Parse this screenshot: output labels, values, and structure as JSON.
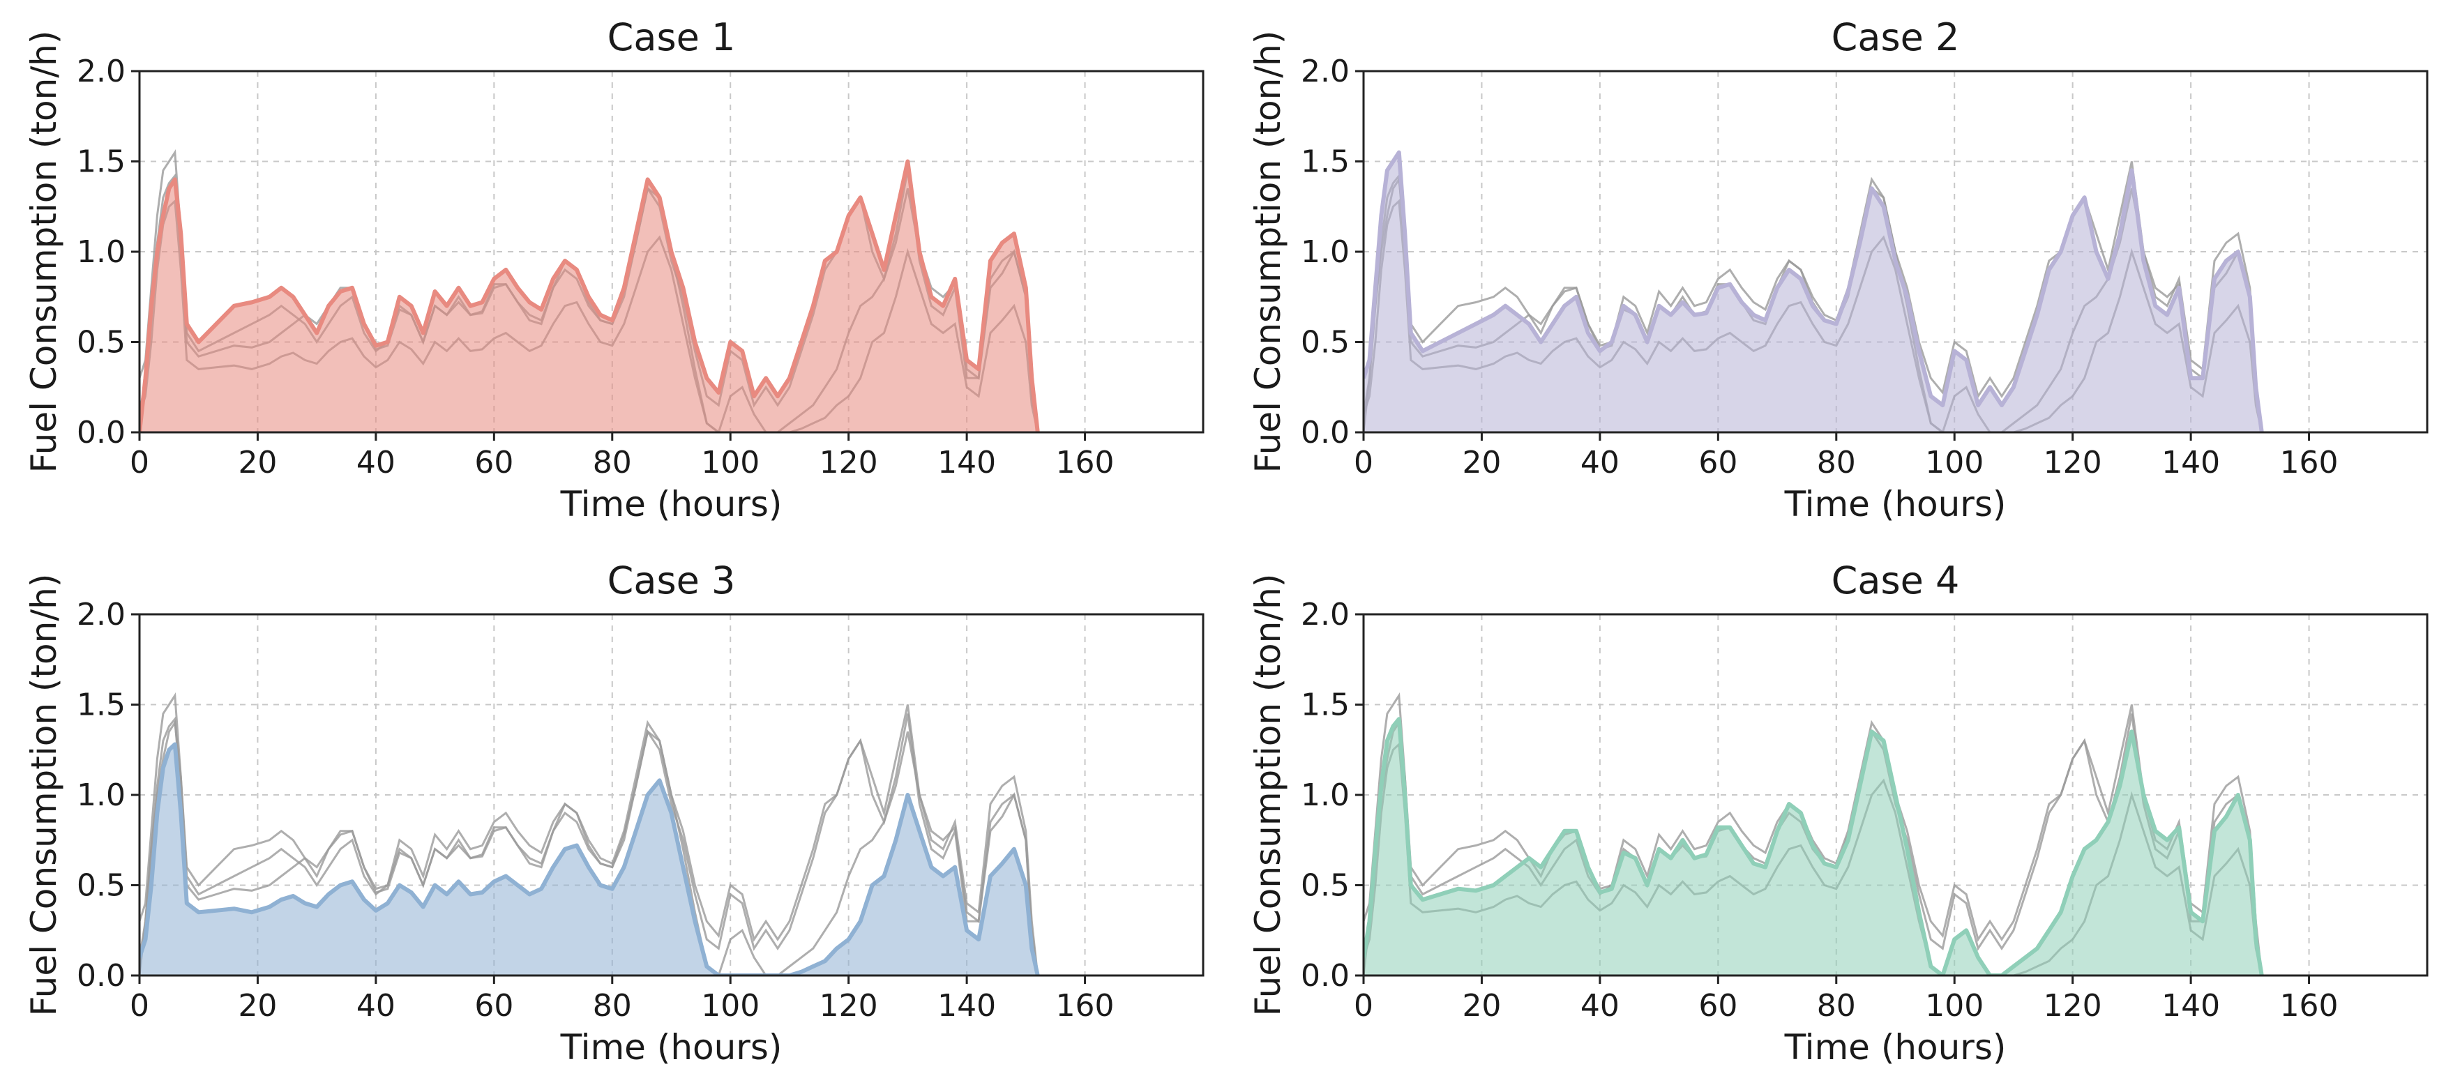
{
  "figure": {
    "style": {
      "grid": true,
      "reference_line_color": "#9a9a9a"
    }
  },
  "chart_data": [
    {
      "type": "area",
      "title": "Case 1",
      "xlabel": "Time (hours)",
      "ylabel": "Fuel Consumption (ton/h)",
      "xlim": [
        0,
        180
      ],
      "ylim": [
        0,
        2.0
      ],
      "xticks": [
        0,
        20,
        40,
        60,
        80,
        100,
        120,
        140,
        160
      ],
      "yticks": [
        0.0,
        0.5,
        1.0,
        1.5,
        2.0
      ],
      "color": "#e88a80",
      "series": [
        {
          "x": [
            0,
            1,
            2,
            3,
            4,
            5,
            6,
            7,
            8,
            10,
            13,
            16,
            19,
            22,
            24,
            26,
            28,
            30,
            32,
            34,
            36,
            38,
            40,
            42,
            44,
            46,
            48,
            50,
            52,
            54,
            56,
            58,
            60,
            62,
            64,
            66,
            68,
            70,
            72,
            74,
            76,
            78,
            80,
            82,
            84,
            86,
            88,
            90,
            92,
            94,
            96,
            98,
            100,
            102,
            104,
            106,
            108,
            110,
            112,
            114,
            116,
            118,
            120,
            122,
            124,
            126,
            128,
            130,
            132,
            134,
            136,
            138,
            140,
            142,
            144,
            146,
            148,
            150,
            151,
            152
          ],
          "values": [
            0.0,
            0.3,
            0.7,
            1.0,
            1.2,
            1.35,
            1.4,
            1.1,
            0.6,
            0.5,
            0.6,
            0.7,
            0.72,
            0.75,
            0.8,
            0.75,
            0.65,
            0.55,
            0.7,
            0.78,
            0.8,
            0.6,
            0.48,
            0.5,
            0.75,
            0.7,
            0.55,
            0.78,
            0.7,
            0.8,
            0.7,
            0.72,
            0.85,
            0.9,
            0.8,
            0.72,
            0.68,
            0.85,
            0.95,
            0.9,
            0.75,
            0.65,
            0.62,
            0.8,
            1.1,
            1.4,
            1.3,
            1.0,
            0.8,
            0.5,
            0.3,
            0.22,
            0.5,
            0.45,
            0.2,
            0.3,
            0.2,
            0.3,
            0.5,
            0.7,
            0.95,
            1.0,
            1.2,
            1.3,
            1.1,
            0.9,
            1.2,
            1.5,
            1.0,
            0.75,
            0.7,
            0.85,
            0.4,
            0.35,
            0.95,
            1.05,
            1.1,
            0.8,
            0.3,
            0.0
          ]
        }
      ]
    },
    {
      "type": "area",
      "title": "Case 2",
      "xlabel": "Time (hours)",
      "ylabel": "Fuel Consumption (ton/h)",
      "xlim": [
        0,
        180
      ],
      "ylim": [
        0,
        2.0
      ],
      "xticks": [
        0,
        20,
        40,
        60,
        80,
        100,
        120,
        140,
        160
      ],
      "yticks": [
        0.0,
        0.5,
        1.0,
        1.5,
        2.0
      ],
      "color": "#b7b2d6",
      "series": [
        {
          "x": [
            0,
            1,
            2,
            3,
            4,
            5,
            6,
            7,
            8,
            10,
            13,
            16,
            19,
            22,
            24,
            26,
            28,
            30,
            32,
            34,
            36,
            38,
            40,
            42,
            44,
            46,
            48,
            50,
            52,
            54,
            56,
            58,
            60,
            62,
            64,
            66,
            68,
            70,
            72,
            74,
            76,
            78,
            80,
            82,
            84,
            86,
            88,
            90,
            92,
            94,
            96,
            98,
            100,
            102,
            104,
            106,
            108,
            110,
            112,
            114,
            116,
            118,
            120,
            122,
            124,
            126,
            128,
            130,
            132,
            134,
            136,
            138,
            140,
            142,
            144,
            146,
            148,
            150,
            151,
            152
          ],
          "values": [
            0.3,
            0.4,
            0.8,
            1.2,
            1.45,
            1.5,
            1.55,
            1.1,
            0.55,
            0.45,
            0.5,
            0.55,
            0.6,
            0.65,
            0.7,
            0.65,
            0.6,
            0.5,
            0.6,
            0.7,
            0.75,
            0.55,
            0.45,
            0.5,
            0.7,
            0.65,
            0.5,
            0.7,
            0.65,
            0.72,
            0.65,
            0.66,
            0.8,
            0.82,
            0.72,
            0.65,
            0.62,
            0.8,
            0.9,
            0.85,
            0.7,
            0.62,
            0.6,
            0.78,
            1.05,
            1.35,
            1.25,
            0.95,
            0.75,
            0.45,
            0.2,
            0.15,
            0.45,
            0.4,
            0.15,
            0.25,
            0.15,
            0.25,
            0.45,
            0.65,
            0.9,
            1.0,
            1.2,
            1.3,
            1.0,
            0.85,
            1.1,
            1.45,
            0.95,
            0.7,
            0.65,
            0.8,
            0.3,
            0.3,
            0.85,
            0.95,
            1.0,
            0.75,
            0.25,
            0.0
          ]
        }
      ]
    },
    {
      "type": "area",
      "title": "Case 3",
      "xlabel": "Time (hours)",
      "ylabel": "Fuel Consumption (ton/h)",
      "xlim": [
        0,
        180
      ],
      "ylim": [
        0,
        2.0
      ],
      "xticks": [
        0,
        20,
        40,
        60,
        80,
        100,
        120,
        140,
        160
      ],
      "yticks": [
        0.0,
        0.5,
        1.0,
        1.5,
        2.0
      ],
      "color": "#8fb1d3",
      "series": [
        {
          "x": [
            0,
            1,
            2,
            3,
            4,
            5,
            6,
            7,
            8,
            10,
            13,
            16,
            19,
            22,
            24,
            26,
            28,
            30,
            32,
            34,
            36,
            38,
            40,
            42,
            44,
            46,
            48,
            50,
            52,
            54,
            56,
            58,
            60,
            62,
            64,
            66,
            68,
            70,
            72,
            74,
            76,
            78,
            80,
            82,
            84,
            86,
            88,
            90,
            92,
            94,
            96,
            98,
            100,
            102,
            104,
            106,
            108,
            110,
            112,
            114,
            116,
            118,
            120,
            122,
            124,
            126,
            128,
            130,
            132,
            134,
            136,
            138,
            140,
            142,
            144,
            146,
            148,
            150,
            151,
            152
          ],
          "values": [
            0.1,
            0.2,
            0.5,
            0.9,
            1.15,
            1.25,
            1.28,
            0.9,
            0.4,
            0.35,
            0.36,
            0.37,
            0.35,
            0.38,
            0.42,
            0.44,
            0.4,
            0.38,
            0.45,
            0.5,
            0.52,
            0.42,
            0.36,
            0.4,
            0.5,
            0.46,
            0.38,
            0.5,
            0.45,
            0.52,
            0.45,
            0.46,
            0.52,
            0.55,
            0.5,
            0.45,
            0.48,
            0.6,
            0.7,
            0.72,
            0.6,
            0.5,
            0.48,
            0.6,
            0.8,
            1.0,
            1.08,
            0.9,
            0.6,
            0.3,
            0.05,
            0.0,
            0.0,
            0.0,
            0.0,
            0.0,
            0.0,
            0.0,
            0.02,
            0.05,
            0.08,
            0.15,
            0.2,
            0.3,
            0.5,
            0.55,
            0.75,
            1.0,
            0.8,
            0.6,
            0.55,
            0.6,
            0.25,
            0.2,
            0.55,
            0.62,
            0.7,
            0.5,
            0.15,
            0.0
          ]
        }
      ]
    },
    {
      "type": "area",
      "title": "Case 4",
      "xlabel": "Time (hours)",
      "ylabel": "Fuel Consumption (ton/h)",
      "xlim": [
        0,
        180
      ],
      "ylim": [
        0,
        2.0
      ],
      "xticks": [
        0,
        20,
        40,
        60,
        80,
        100,
        120,
        140,
        160
      ],
      "yticks": [
        0.0,
        0.5,
        1.0,
        1.5,
        2.0
      ],
      "color": "#8fcfb8",
      "series": [
        {
          "x": [
            0,
            1,
            2,
            3,
            4,
            5,
            6,
            7,
            8,
            10,
            13,
            16,
            19,
            22,
            24,
            26,
            28,
            30,
            32,
            34,
            36,
            38,
            40,
            42,
            44,
            46,
            48,
            50,
            52,
            54,
            56,
            58,
            60,
            62,
            64,
            66,
            68,
            70,
            72,
            74,
            76,
            78,
            80,
            82,
            84,
            86,
            88,
            90,
            92,
            94,
            96,
            98,
            100,
            102,
            104,
            106,
            108,
            110,
            112,
            114,
            116,
            118,
            120,
            122,
            124,
            126,
            128,
            130,
            132,
            134,
            136,
            138,
            140,
            142,
            144,
            146,
            148,
            150,
            151,
            152
          ],
          "values": [
            0.1,
            0.3,
            0.7,
            1.05,
            1.3,
            1.38,
            1.42,
            1.0,
            0.5,
            0.42,
            0.45,
            0.48,
            0.47,
            0.5,
            0.55,
            0.6,
            0.65,
            0.6,
            0.7,
            0.8,
            0.8,
            0.6,
            0.46,
            0.48,
            0.68,
            0.65,
            0.5,
            0.7,
            0.65,
            0.75,
            0.65,
            0.67,
            0.82,
            0.82,
            0.72,
            0.62,
            0.6,
            0.8,
            0.95,
            0.9,
            0.72,
            0.62,
            0.6,
            0.75,
            1.05,
            1.35,
            1.3,
            1.0,
            0.7,
            0.35,
            0.05,
            0.0,
            0.2,
            0.25,
            0.1,
            0.0,
            0.0,
            0.05,
            0.1,
            0.15,
            0.25,
            0.35,
            0.55,
            0.7,
            0.75,
            0.85,
            1.05,
            1.35,
            1.0,
            0.8,
            0.75,
            0.82,
            0.35,
            0.3,
            0.8,
            0.88,
            1.0,
            0.75,
            0.2,
            0.0
          ]
        }
      ]
    }
  ]
}
